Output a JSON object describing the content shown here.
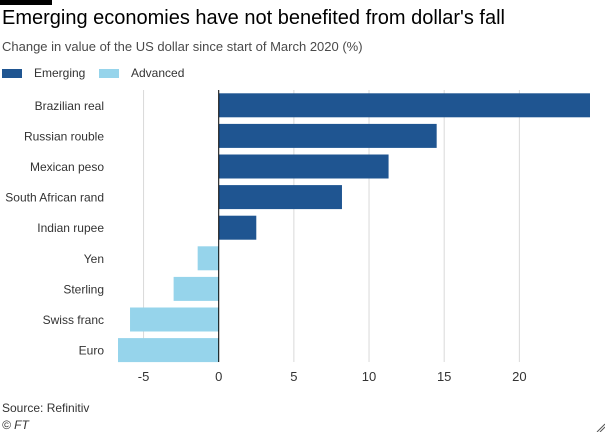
{
  "header": {
    "title": "Emerging economies have not benefited from dollar's fall",
    "subtitle": "Change in value of the US dollar since start of March 2020 (%)"
  },
  "legend": [
    {
      "label": "Emerging",
      "color": "#1f5591"
    },
    {
      "label": "Advanced",
      "color": "#96d4eb"
    }
  ],
  "footer": {
    "source": "Source: Refinitiv",
    "credit": "© FT"
  },
  "colors": {
    "emerging": "#1f5591",
    "advanced": "#96d4eb",
    "grid": "#d9d9d9",
    "axis_text": "#333333",
    "zero_line": "#000000"
  },
  "chart_data": {
    "type": "bar",
    "orientation": "horizontal",
    "title": "Emerging economies have not benefited from dollar's fall",
    "subtitle": "Change in value of the US dollar since start of March 2020 (%)",
    "categories": [
      "Brazilian real",
      "Russian rouble",
      "Mexican peso",
      "South African rand",
      "Indian rupee",
      "Yen",
      "Sterling",
      "Swiss franc",
      "Euro"
    ],
    "values": [
      24.7,
      14.5,
      11.3,
      8.2,
      2.5,
      -1.4,
      -3.0,
      -5.9,
      -6.7
    ],
    "group": [
      "Emerging",
      "Emerging",
      "Emerging",
      "Emerging",
      "Emerging",
      "Advanced",
      "Advanced",
      "Advanced",
      "Advanced"
    ],
    "xlim": [
      -6.7,
      24.7
    ],
    "xticks": [
      -5,
      0,
      5,
      10,
      15,
      20
    ],
    "xtick_labels": [
      "-5",
      "0",
      "5",
      "10",
      "15",
      "20"
    ],
    "grid": true,
    "legend_position": "top-left"
  }
}
